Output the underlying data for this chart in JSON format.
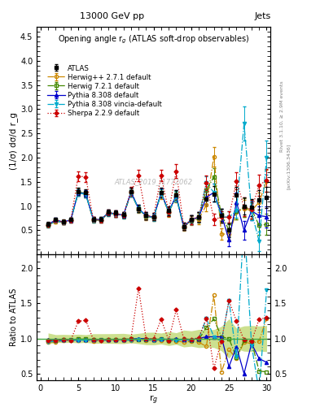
{
  "title_left": "13000 GeV pp",
  "title_right": "Jets",
  "plot_title": "Opening angle r$_g$ (ATLAS soft-drop observables)",
  "xlabel": "r$_g$",
  "ylabel_main": "(1/σ) dσ/d r_g",
  "ylabel_ratio": "Ratio to ATLAS",
  "right_label1": "Rivet 3.1.10, ≥ 2.9M events",
  "right_label2": "[arXiv:1306.3436]",
  "watermark": "ATLAS_2019_I1772062",
  "xlim": [
    -0.5,
    30.5
  ],
  "ylim_main": [
    0.0,
    4.7
  ],
  "ylim_ratio": [
    0.4,
    2.2
  ],
  "xticks": [
    0,
    5,
    10,
    15,
    20,
    25,
    30
  ],
  "yticks_main": [
    0.5,
    1.0,
    1.5,
    2.0,
    2.5,
    3.0,
    3.5,
    4.0,
    4.5
  ],
  "yticks_ratio": [
    0.5,
    1.0,
    1.5,
    2.0
  ],
  "x": [
    1,
    2,
    3,
    4,
    5,
    6,
    7,
    8,
    9,
    10,
    11,
    12,
    13,
    14,
    15,
    16,
    17,
    18,
    19,
    20,
    21,
    22,
    23,
    24,
    25,
    26,
    27,
    28,
    29,
    30
  ],
  "atlas_y": [
    0.63,
    0.72,
    0.68,
    0.72,
    1.3,
    1.27,
    0.73,
    0.73,
    0.87,
    0.85,
    0.82,
    1.3,
    0.95,
    0.8,
    0.78,
    1.28,
    0.9,
    1.22,
    0.58,
    0.73,
    0.77,
    1.15,
    1.25,
    0.8,
    0.5,
    1.22,
    1.0,
    0.97,
    1.12,
    1.18
  ],
  "atlas_yerr": [
    0.05,
    0.04,
    0.04,
    0.04,
    0.08,
    0.07,
    0.05,
    0.05,
    0.06,
    0.06,
    0.06,
    0.08,
    0.07,
    0.07,
    0.07,
    0.1,
    0.09,
    0.1,
    0.07,
    0.08,
    0.1,
    0.14,
    0.16,
    0.14,
    0.14,
    0.18,
    0.18,
    0.18,
    0.2,
    0.22
  ],
  "herwig271_y": [
    0.6,
    0.68,
    0.66,
    0.7,
    1.27,
    1.24,
    0.7,
    0.71,
    0.85,
    0.83,
    0.8,
    1.27,
    0.93,
    0.78,
    0.76,
    1.25,
    0.87,
    1.18,
    0.55,
    0.7,
    0.73,
    1.02,
    2.02,
    0.42,
    0.42,
    0.87,
    0.95,
    0.9,
    1.08,
    1.52
  ],
  "herwig271_yerr": [
    0.04,
    0.04,
    0.04,
    0.04,
    0.06,
    0.06,
    0.05,
    0.05,
    0.06,
    0.06,
    0.06,
    0.08,
    0.07,
    0.07,
    0.07,
    0.1,
    0.09,
    0.1,
    0.07,
    0.09,
    0.1,
    0.13,
    0.2,
    0.12,
    0.12,
    0.15,
    0.18,
    0.18,
    0.2,
    0.22
  ],
  "herwig721_y": [
    0.61,
    0.7,
    0.67,
    0.71,
    1.29,
    1.26,
    0.72,
    0.72,
    0.86,
    0.84,
    0.81,
    1.29,
    0.94,
    0.79,
    0.77,
    1.27,
    0.88,
    1.2,
    0.57,
    0.71,
    0.76,
    1.33,
    1.6,
    0.82,
    0.5,
    0.89,
    0.97,
    0.93,
    0.6,
    0.62
  ],
  "herwig721_yerr": [
    0.04,
    0.04,
    0.04,
    0.04,
    0.07,
    0.07,
    0.05,
    0.05,
    0.06,
    0.06,
    0.06,
    0.09,
    0.07,
    0.07,
    0.07,
    0.1,
    0.09,
    0.11,
    0.07,
    0.09,
    0.1,
    0.14,
    0.18,
    0.13,
    0.13,
    0.16,
    0.19,
    0.19,
    0.2,
    0.22
  ],
  "pythia8_y": [
    0.62,
    0.71,
    0.67,
    0.71,
    1.28,
    1.25,
    0.72,
    0.72,
    0.86,
    0.84,
    0.81,
    1.29,
    0.95,
    0.8,
    0.77,
    1.27,
    0.89,
    1.21,
    0.57,
    0.72,
    0.77,
    1.18,
    1.28,
    0.82,
    0.3,
    1.08,
    0.5,
    0.9,
    0.8,
    0.78
  ],
  "pythia8_yerr": [
    0.04,
    0.04,
    0.04,
    0.04,
    0.07,
    0.07,
    0.05,
    0.05,
    0.06,
    0.06,
    0.06,
    0.09,
    0.07,
    0.07,
    0.07,
    0.1,
    0.09,
    0.11,
    0.07,
    0.09,
    0.1,
    0.14,
    0.18,
    0.13,
    0.13,
    0.2,
    0.19,
    0.19,
    0.2,
    0.22
  ],
  "pythia8v_y": [
    0.6,
    0.69,
    0.66,
    0.7,
    1.27,
    1.24,
    0.71,
    0.71,
    0.85,
    0.83,
    0.8,
    1.27,
    0.94,
    0.79,
    0.76,
    1.26,
    0.88,
    1.19,
    0.57,
    0.71,
    0.77,
    1.48,
    1.28,
    0.77,
    0.77,
    0.9,
    2.7,
    0.88,
    0.27,
    2.0
  ],
  "pythia8v_yerr": [
    0.04,
    0.04,
    0.04,
    0.04,
    0.06,
    0.06,
    0.05,
    0.05,
    0.06,
    0.06,
    0.06,
    0.08,
    0.07,
    0.07,
    0.07,
    0.09,
    0.08,
    0.1,
    0.07,
    0.09,
    0.1,
    0.13,
    0.18,
    0.12,
    0.12,
    0.15,
    0.35,
    0.18,
    0.2,
    0.35
  ],
  "sherpa_y": [
    0.61,
    0.7,
    0.67,
    0.7,
    1.62,
    1.6,
    0.72,
    0.71,
    0.86,
    0.84,
    0.81,
    1.3,
    1.63,
    0.8,
    0.78,
    1.63,
    0.88,
    1.72,
    0.58,
    0.72,
    0.78,
    1.48,
    0.72,
    0.77,
    0.77,
    1.52,
    0.98,
    0.93,
    1.43,
    1.53
  ],
  "sherpa_yerr": [
    0.04,
    0.04,
    0.04,
    0.04,
    0.1,
    0.1,
    0.05,
    0.05,
    0.06,
    0.06,
    0.06,
    0.09,
    0.12,
    0.07,
    0.07,
    0.12,
    0.09,
    0.14,
    0.07,
    0.09,
    0.1,
    0.15,
    0.12,
    0.12,
    0.12,
    0.18,
    0.19,
    0.19,
    0.22,
    0.24
  ],
  "atlas_color": "#000000",
  "herwig271_color": "#cc8800",
  "herwig721_color": "#448800",
  "pythia8_color": "#0000cc",
  "pythia8v_color": "#00aacc",
  "sherpa_color": "#cc0000",
  "ratio_band_color": "#aacc44",
  "ratio_line_color": "#44aa44",
  "bg_color": "#ffffff",
  "grid_color": "#cccccc"
}
